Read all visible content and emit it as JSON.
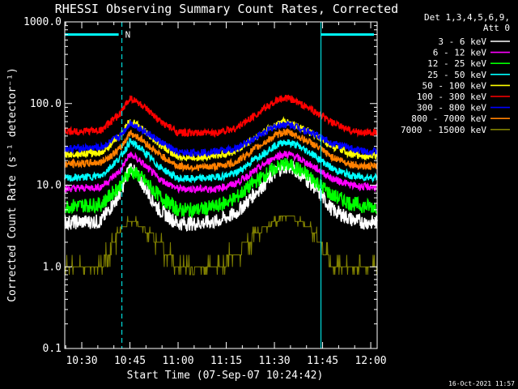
{
  "chart_data": {
    "type": "line",
    "title": "RHESSI Observing Summary Count Rates, Corrected",
    "xlabel": "Start Time (07-Sep-07 10:24:42)",
    "ylabel": "Corrected Count Rate (s⁻¹ detector⁻¹)",
    "y_scale": "log",
    "ylim": [
      0.1,
      1000
    ],
    "xlim_minutes": [
      24.7,
      122.0
    ],
    "x_ticks": [
      {
        "label": "10:30",
        "value": 30
      },
      {
        "label": "10:45",
        "value": 45
      },
      {
        "label": "11:00",
        "value": 60
      },
      {
        "label": "11:15",
        "value": 75
      },
      {
        "label": "11:30",
        "value": 90
      },
      {
        "label": "11:45",
        "value": 105
      },
      {
        "label": "12:00",
        "value": 120
      }
    ],
    "y_ticks": [
      {
        "label": "0.1",
        "value": 0.1
      },
      {
        "label": "1.0",
        "value": 1
      },
      {
        "label": "10.0",
        "value": 10
      },
      {
        "label": "100.0",
        "value": 100
      },
      {
        "label": "1000.0",
        "value": 1000
      }
    ],
    "legend_header": [
      "Det 1,3,4,5,6,9,",
      "Att 0"
    ],
    "legend_position": "right",
    "time_axis": [
      24.7,
      36,
      42,
      45,
      48,
      54,
      60,
      66,
      72,
      78,
      84,
      90,
      93,
      96,
      102,
      108,
      114,
      118,
      122
    ],
    "series": [
      {
        "name": "3 - 6 keV",
        "color": "#ffffff",
        "values": [
          3.5,
          3.6,
          8,
          17,
          12,
          5,
          3.4,
          3.4,
          3.6,
          4.5,
          8,
          14,
          17,
          16,
          10,
          5,
          3.8,
          3.5,
          3.5
        ]
      },
      {
        "name": "6 - 12 keV",
        "color": "#ff00ff",
        "values": [
          9,
          9.5,
          15,
          24,
          20,
          12,
          9,
          9,
          9,
          10.5,
          15,
          22,
          24,
          23,
          17,
          12,
          10,
          9.5,
          9.5
        ]
      },
      {
        "name": "12 - 25 keV",
        "color": "#00ff00",
        "values": [
          5.5,
          5.8,
          10,
          15,
          13,
          7.5,
          5,
          5,
          5.5,
          7,
          11,
          16,
          18,
          17,
          12,
          7.5,
          6,
          5.5,
          5.5
        ]
      },
      {
        "name": "25 - 50 keV",
        "color": "#00ffff",
        "values": [
          12,
          13,
          22,
          34,
          29,
          17,
          12,
          12,
          12.5,
          14,
          21,
          30,
          34,
          32,
          24,
          16,
          13,
          12.5,
          12.5
        ]
      },
      {
        "name": "50 - 100 keV",
        "color": "#ffff00",
        "values": [
          24,
          25,
          40,
          62,
          52,
          32,
          22,
          22,
          23,
          26,
          38,
          54,
          60,
          56,
          42,
          30,
          24,
          23,
          23
        ]
      },
      {
        "name": "100 - 300 keV",
        "color": "#ff0000",
        "values": [
          45,
          47,
          75,
          118,
          100,
          62,
          44,
          43,
          44,
          50,
          72,
          105,
          118,
          110,
          82,
          58,
          46,
          44,
          44
        ]
      },
      {
        "name": "300 - 800 keV",
        "color": "#0000ff",
        "values": [
          28,
          29,
          40,
          58,
          50,
          35,
          25,
          25,
          26,
          28,
          38,
          52,
          56,
          54,
          43,
          33,
          28,
          26,
          26
        ]
      },
      {
        "name": "800 - 7000 keV",
        "color": "#ff8000",
        "values": [
          18,
          19,
          28,
          44,
          38,
          24,
          17,
          16.5,
          17,
          19,
          28,
          40,
          45,
          42,
          32,
          22,
          18,
          17,
          17
        ]
      },
      {
        "name": "7000 - 15000 keV",
        "color": "#808000",
        "values": [
          1.0,
          1.0,
          2.8,
          3.6,
          3.3,
          2.0,
          1.0,
          0.9,
          1.0,
          1.4,
          2.5,
          3.6,
          4.2,
          4.0,
          2.8,
          1.0,
          1.0,
          1.0,
          1.0
        ]
      }
    ],
    "annotations": {
      "saa_label": "N",
      "saa_level": 700,
      "saa_segments": [
        [
          24.7,
          42.5
        ],
        [
          104.5,
          122
        ]
      ],
      "boundary_lines": [
        24.7,
        42.5,
        104.5,
        122
      ]
    }
  },
  "timestamp": "16-Oct-2021 11:57",
  "colors": {
    "background": "#000000",
    "axes": "#ffffff",
    "annotation": "#00ffff"
  }
}
